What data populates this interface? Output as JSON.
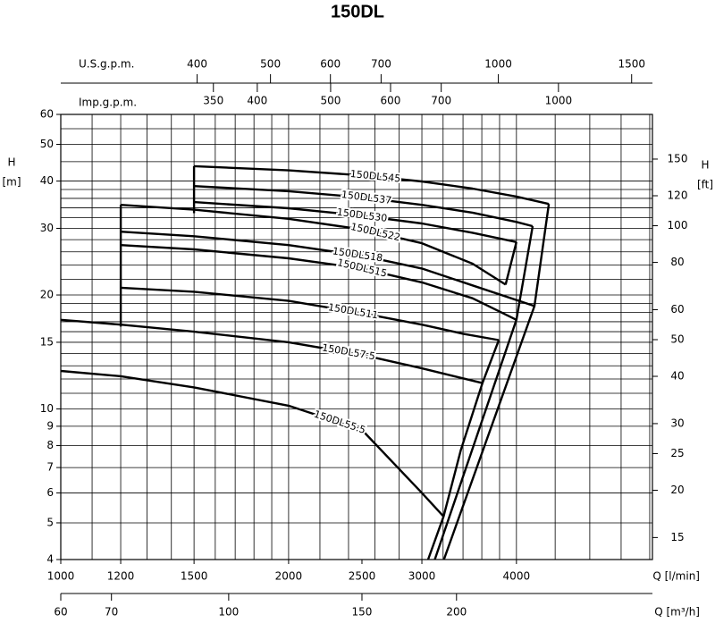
{
  "chart_data": {
    "type": "line",
    "title": "150DL",
    "xlabel": "Q [l/min]",
    "ylabel": "H",
    "ylabel_unit": "[m]",
    "log_x": true,
    "log_y": true,
    "grid": true,
    "color": "#000000",
    "xlim": [
      1000,
      6050
    ],
    "ylim": [
      4,
      60
    ],
    "xticks": [
      1000,
      1200,
      1500,
      2000,
      2500,
      3000,
      4000
    ],
    "yticks": [
      4,
      5,
      6,
      7,
      8,
      9,
      10,
      15,
      20,
      30,
      40,
      50,
      60
    ],
    "xgrid": [
      1000,
      1100,
      1200,
      1300,
      1400,
      1500,
      1600,
      1700,
      1800,
      1900,
      2000,
      2200,
      2400,
      2600,
      2800,
      3000,
      3200,
      3400,
      3600,
      3800,
      4000,
      4500,
      5000,
      5500,
      6000
    ],
    "ygrid": [
      4,
      5,
      6,
      7,
      8,
      9,
      10,
      11,
      12,
      13,
      14,
      15,
      16,
      17,
      18,
      19,
      20,
      22,
      24,
      26,
      28,
      30,
      32,
      34,
      36,
      38,
      40,
      45,
      50,
      55,
      60
    ],
    "us_gpm_axis": {
      "label": "U.S.g.p.m.",
      "lim": [
        264.2,
        1598
      ],
      "ticks": [
        400,
        500,
        600,
        700,
        1000,
        1500
      ]
    },
    "imp_gpm_axis": {
      "label": "Imp.g.p.m.",
      "lim": [
        220,
        1331
      ],
      "ticks": [
        350,
        400,
        500,
        600,
        700,
        1000
      ]
    },
    "ft_axis": {
      "label": "H",
      "unit": "[ft]",
      "lim": [
        13.12,
        196.85
      ],
      "ticks": [
        15,
        20,
        25,
        30,
        40,
        50,
        60,
        80,
        100,
        120,
        150
      ]
    },
    "m3h_axis": {
      "label": "Q [m³/h]",
      "lim": [
        60,
        363
      ],
      "ticks": [
        60,
        70,
        100,
        150,
        200
      ]
    },
    "series": [
      {
        "name": "150DL545",
        "x": [
          1500,
          2000,
          2500,
          3000,
          3500,
          4000,
          4415
        ],
        "values": [
          43.8,
          42.7,
          41.4,
          39.9,
          38.2,
          36.4,
          34.8
        ]
      },
      {
        "name": "150DL537",
        "x": [
          1500,
          2000,
          2500,
          3000,
          3500,
          4000,
          4200
        ],
        "values": [
          38.8,
          37.6,
          36.2,
          34.6,
          33.0,
          31.2,
          30.4
        ]
      },
      {
        "name": "150DL530",
        "x": [
          1500,
          2000,
          2500,
          3000,
          3500,
          4000
        ],
        "values": [
          35.2,
          33.9,
          32.4,
          30.9,
          29.2,
          27.6
        ]
      },
      {
        "name": "150DL522",
        "x": [
          1200,
          1500,
          2000,
          2500,
          3000,
          3500,
          3870
        ],
        "values": [
          34.6,
          33.6,
          31.8,
          29.8,
          27.4,
          24.2,
          21.3
        ]
      },
      {
        "name": "150DL518",
        "x": [
          1200,
          1500,
          2000,
          2500,
          3000,
          3500,
          4225
        ],
        "values": [
          29.4,
          28.6,
          27.1,
          25.4,
          23.5,
          21.2,
          18.7
        ]
      },
      {
        "name": "150DL515",
        "x": [
          1200,
          1500,
          2000,
          2500,
          3000,
          3500,
          4000
        ],
        "values": [
          27.1,
          26.4,
          25.0,
          23.5,
          21.6,
          19.6,
          17.2
        ]
      },
      {
        "name": "150DL511",
        "x": [
          1200,
          1500,
          2000,
          2500,
          3000,
          3400,
          3791
        ],
        "values": [
          20.9,
          20.4,
          19.3,
          17.9,
          16.7,
          15.8,
          15.2
        ]
      },
      {
        "name": "150DL57.5",
        "x": [
          1000,
          1200,
          1500,
          2000,
          2500,
          3000,
          3607
        ],
        "values": [
          17.2,
          16.7,
          16.0,
          15.0,
          13.9,
          12.8,
          11.7
        ]
      },
      {
        "name": "150DL55.5",
        "x": [
          1000,
          1200,
          1500,
          2000,
          2500,
          3000,
          3205
        ],
        "values": [
          12.6,
          12.2,
          11.4,
          10.2,
          8.8,
          6.0,
          5.2
        ]
      }
    ],
    "limit_lines": [
      {
        "x": [
          1500,
          1500
        ],
        "y": [
          43.8,
          32.9
        ]
      },
      {
        "x": [
          1200,
          1200
        ],
        "y": [
          34.6,
          16.5
        ]
      },
      {
        "x": [
          4415,
          4225,
          3208
        ],
        "y": [
          34.8,
          18.7,
          4
        ]
      },
      {
        "x": [
          4202,
          4000,
          3120
        ],
        "y": [
          30.4,
          17.2,
          4
        ]
      },
      {
        "x": [
          4000,
          3870
        ],
        "y": [
          27.6,
          21.3
        ]
      },
      {
        "x": [
          3791,
          3607,
          3378,
          3205,
          3057
        ],
        "y": [
          15.2,
          11.7,
          7.8,
          5.2,
          4
        ]
      }
    ]
  }
}
